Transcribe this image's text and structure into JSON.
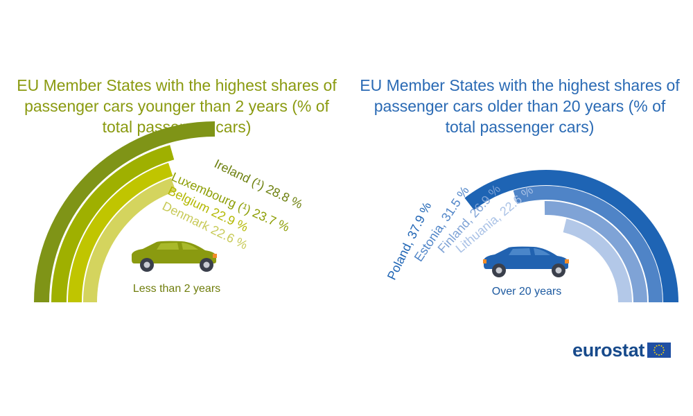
{
  "colors": {
    "green_title": "#8a9a10",
    "blue_title": "#2a6ab4",
    "caption_green": "#6f7d0c",
    "caption_blue": "#1d5aa0",
    "eurostat_text": "#174a8b",
    "eu_flag": "#1f4fa3",
    "eu_star": "#f5d20b"
  },
  "left_panel": {
    "title": "EU Member States with the highest shares of passenger cars younger than 2 years (% of total passenger cars)",
    "caption": "Less than 2 years",
    "car_icon": "car-icon-green"
  },
  "right_panel": {
    "title": "EU Member States with the highest shares of passenger cars older than 20 years (% of total passenger cars)",
    "caption": "Over 20 years",
    "car_icon": "car-icon-blue"
  },
  "logo": {
    "text": "eurostat",
    "flag_icon": "eu-flag-icon"
  },
  "chart_data": [
    {
      "type": "radial-bar",
      "title": "EU Member States with the highest shares of passenger cars younger than 2 years (% of total passenger cars)",
      "categories": [
        "Ireland (¹)",
        "Luxembourg (¹)",
        "Belgium",
        "Denmark"
      ],
      "values": [
        28.8,
        23.7,
        22.9,
        22.6
      ],
      "unit": "%",
      "labels": [
        "Ireland (¹) 28.8 %",
        "Luxembourg (¹) 23.7 %",
        "Belgium 22.9 %",
        "Denmark 22.6 %"
      ],
      "colors": [
        "#7f9417",
        "#9fb000",
        "#c0c500",
        "#d4d45e"
      ]
    },
    {
      "type": "radial-bar",
      "title": "EU Member States with the highest shares of passenger cars older than 20 years (% of total passenger cars)",
      "categories": [
        "Poland",
        "Estonia",
        "Finland",
        "Lithuania"
      ],
      "values": [
        37.9,
        31.5,
        26.9,
        22.6
      ],
      "unit": "%",
      "labels": [
        "Poland, 37.9 %",
        "Estonia, 31.5 %",
        "Finland, 26.9 %",
        "Lithuania, 22.6 %"
      ],
      "colors": [
        "#1e64b4",
        "#4f84c7",
        "#7fa3d6",
        "#b3c8e8"
      ]
    }
  ]
}
